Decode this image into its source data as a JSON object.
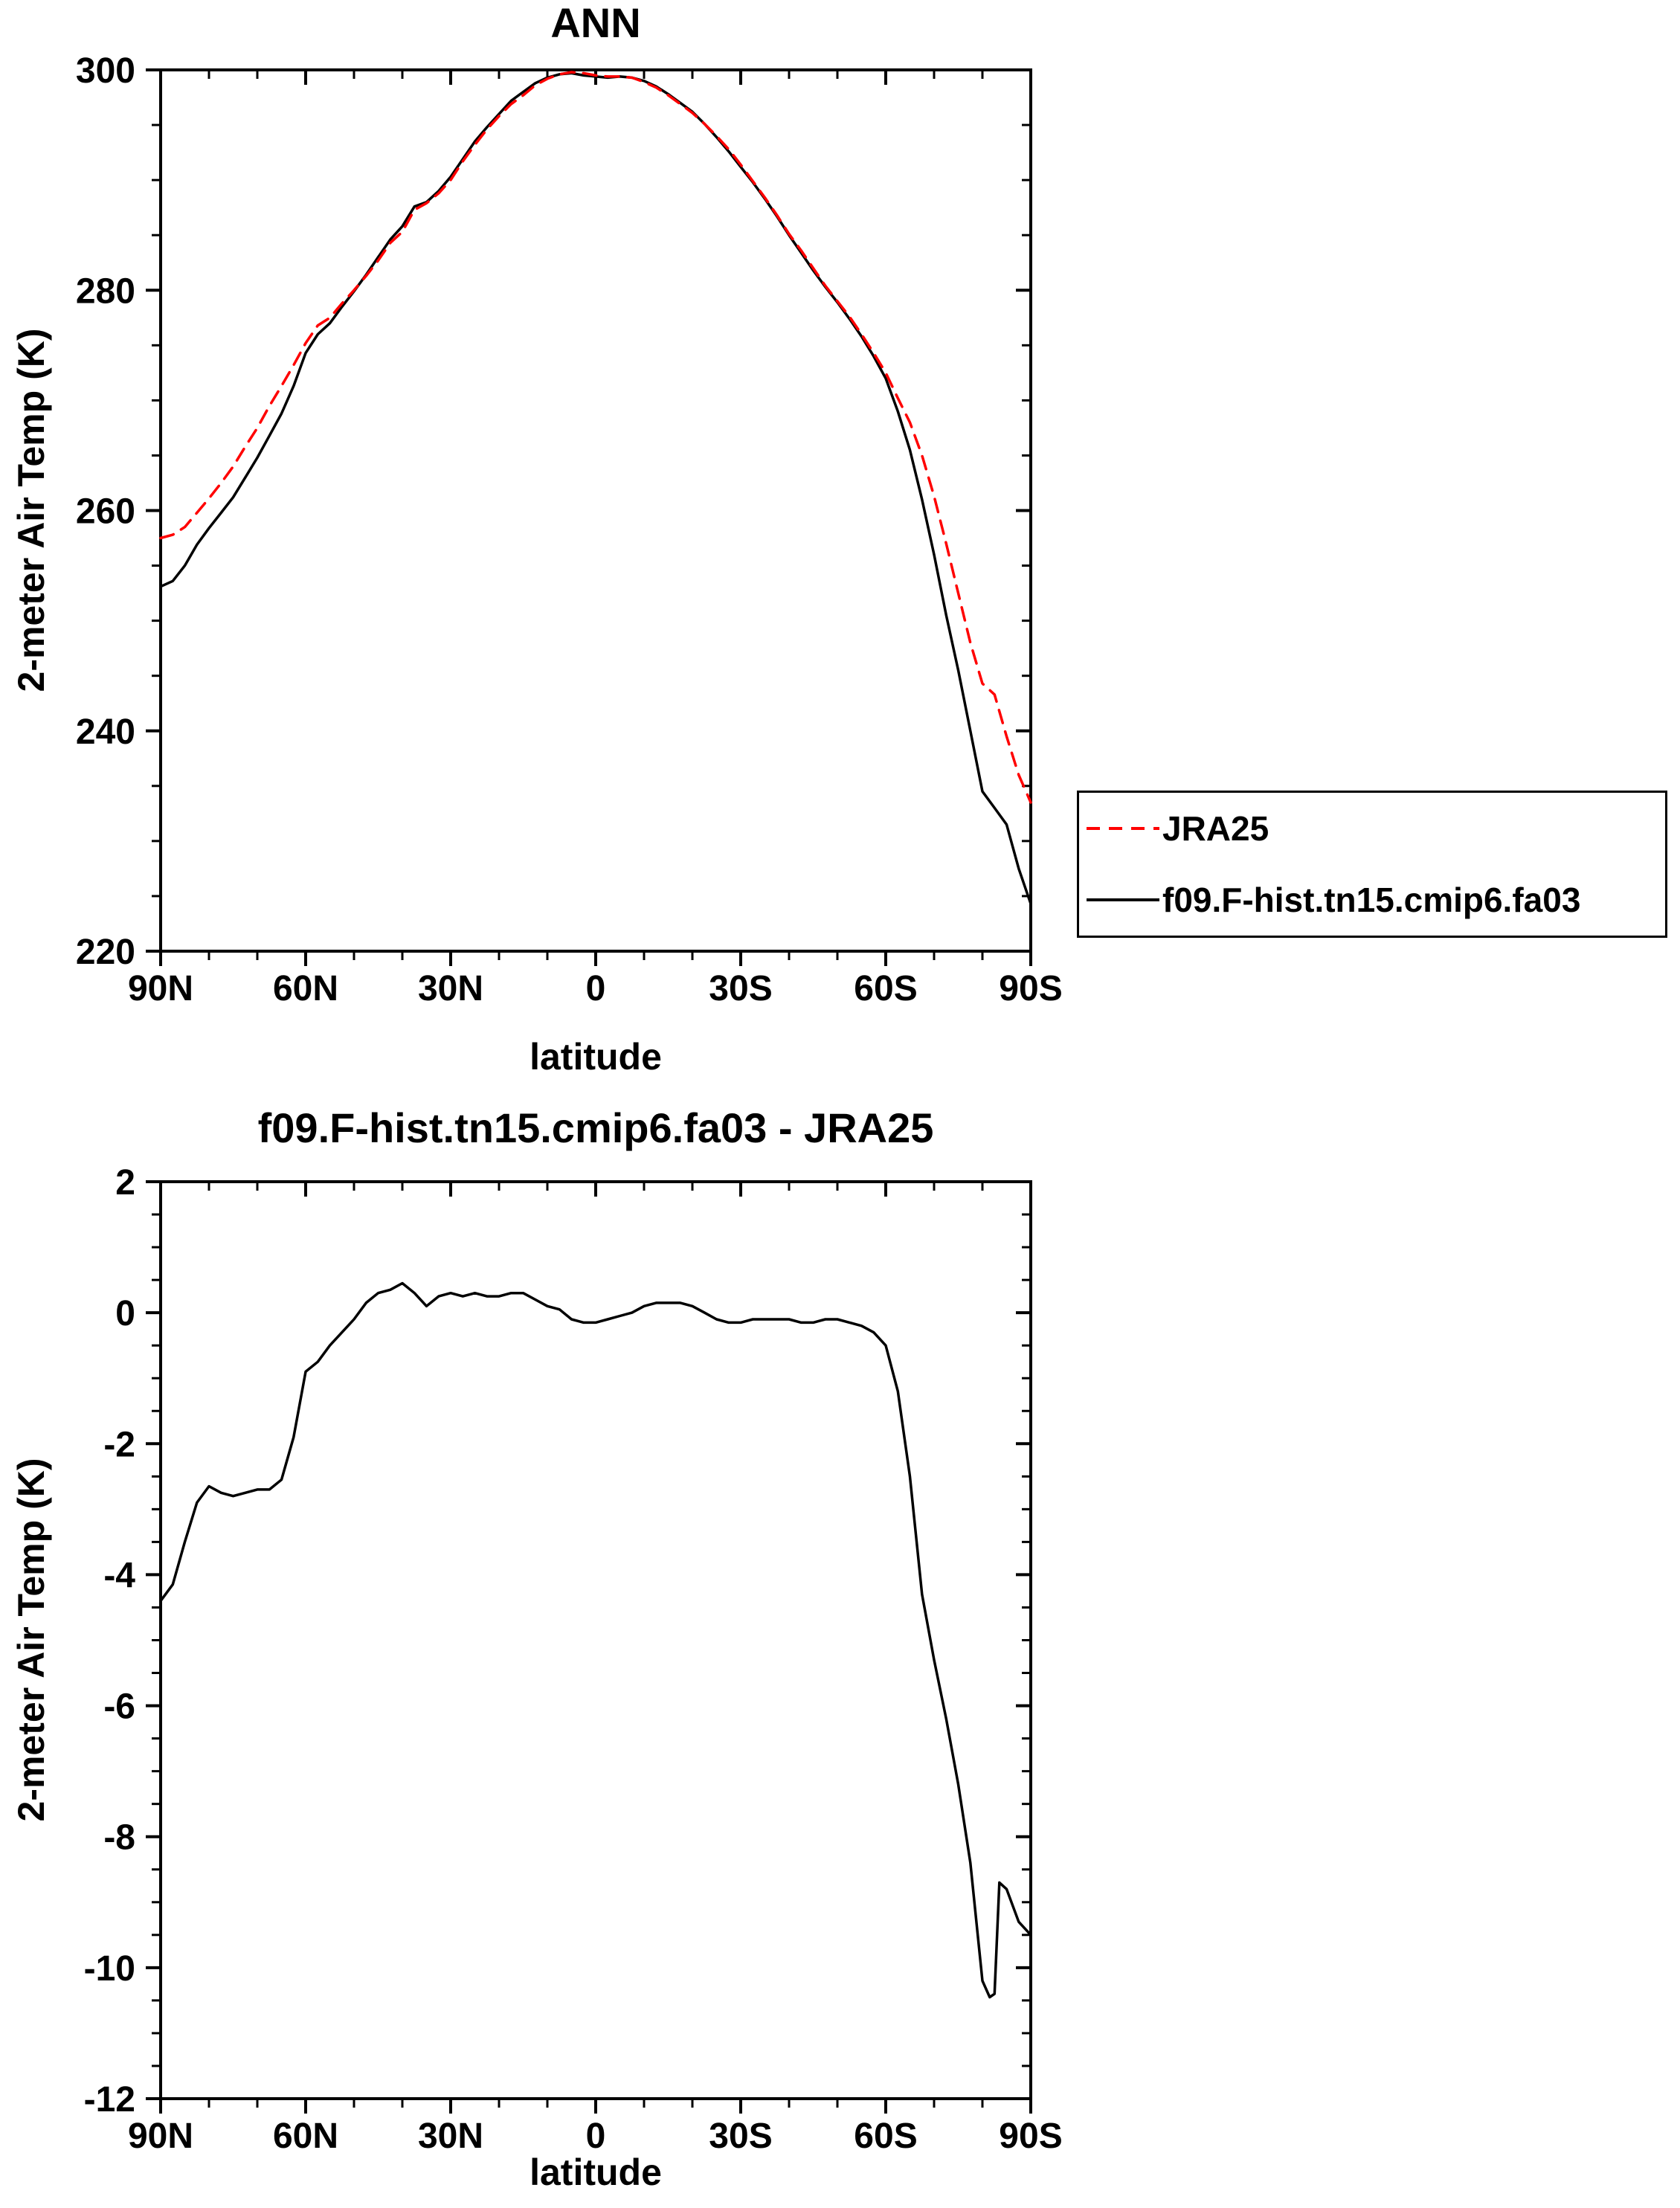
{
  "page": {
    "background": "#ffffff"
  },
  "colors": {
    "axis": "#000000",
    "jra25": "#ff0000",
    "model": "#000000"
  },
  "chart_data": [
    {
      "type": "line",
      "title": "ANN",
      "xlabel": "latitude",
      "ylabel": "2-meter Air Temp (K)",
      "xlim": [
        90,
        -90
      ],
      "ylim": [
        220,
        300
      ],
      "grid": false,
      "legend": {
        "position": "outside-right",
        "entries": [
          "JRA25",
          "f09.F-hist.tn15.cmip6.fa03"
        ]
      },
      "xticks": {
        "major": [
          90,
          60,
          30,
          0,
          -30,
          -60,
          -90
        ],
        "labels": [
          "90N",
          "60N",
          "30N",
          "0",
          "30S",
          "60S",
          "90S"
        ],
        "minor_step": 10
      },
      "yticks": {
        "major": [
          220,
          240,
          260,
          280,
          300
        ],
        "labels": [
          "220",
          "240",
          "260",
          "280",
          "300"
        ],
        "minor_step": 5
      },
      "x": [
        90,
        87.5,
        85,
        82.5,
        80,
        77.5,
        75,
        72.5,
        70,
        67.5,
        65,
        62.5,
        60,
        57.5,
        55,
        52.5,
        50,
        47.5,
        45,
        42.5,
        40,
        37.5,
        35,
        32.5,
        30,
        27.5,
        25,
        22.5,
        20,
        17.5,
        15,
        12.5,
        10,
        7.5,
        5,
        2.5,
        0,
        -2.5,
        -5,
        -7.5,
        -10,
        -12.5,
        -15,
        -17.5,
        -20,
        -22.5,
        -25,
        -27.5,
        -30,
        -32.5,
        -35,
        -37.5,
        -40,
        -42.5,
        -45,
        -47.5,
        -50,
        -52.5,
        -55,
        -57.5,
        -60,
        -62.5,
        -65,
        -67.5,
        -70,
        -72.5,
        -75,
        -77.5,
        -80,
        -82.5,
        -85,
        -87.5,
        -90
      ],
      "series": [
        {
          "name": "JRA25",
          "color": "#ff0000",
          "dash": "dashed",
          "values": [
            257.5,
            257.8,
            258.5,
            259.8,
            261.1,
            262.5,
            264.0,
            265.8,
            267.5,
            269.5,
            271.3,
            273.2,
            275.2,
            276.8,
            277.5,
            278.8,
            280.0,
            281.3,
            282.7,
            284.3,
            285.3,
            287.3,
            287.9,
            288.8,
            290.0,
            291.7,
            293.2,
            294.6,
            295.8,
            296.9,
            297.7,
            298.6,
            299.2,
            299.6,
            299.8,
            299.7,
            299.5,
            299.4,
            299.4,
            299.3,
            298.9,
            298.4,
            297.7,
            296.9,
            296.1,
            295.1,
            294.0,
            292.8,
            291.4,
            289.9,
            288.4,
            286.8,
            285.1,
            283.6,
            282.0,
            280.4,
            279.0,
            277.6,
            276.0,
            274.3,
            272.5,
            270.2,
            268.0,
            265.0,
            261.3,
            257.0,
            252.5,
            248.0,
            244.3,
            243.3,
            239.5,
            236.0,
            233.5
          ]
        },
        {
          "name": "f09.F-hist.tn15.cmip6.fa03",
          "color": "#000000",
          "dash": "solid",
          "values": [
            253.1,
            253.6,
            255.0,
            256.9,
            258.4,
            259.8,
            261.2,
            263.0,
            264.8,
            266.8,
            268.8,
            271.3,
            274.3,
            276.0,
            277.0,
            278.5,
            279.9,
            281.4,
            283.0,
            284.6,
            285.8,
            287.6,
            288.0,
            289.0,
            290.3,
            291.9,
            293.5,
            294.8,
            296.0,
            297.2,
            298.0,
            298.8,
            299.3,
            299.6,
            299.7,
            299.5,
            299.4,
            299.3,
            299.4,
            299.3,
            299.0,
            298.5,
            297.8,
            297.0,
            296.2,
            295.1,
            293.9,
            292.6,
            291.2,
            289.8,
            288.3,
            286.7,
            285.0,
            283.4,
            281.8,
            280.3,
            278.9,
            277.4,
            275.8,
            274.0,
            272.0,
            269.0,
            265.5,
            261.0,
            256.0,
            250.5,
            245.5,
            240.0,
            234.5,
            233.0,
            231.5,
            227.5,
            224.3
          ]
        }
      ]
    },
    {
      "type": "line",
      "title": "f09.F-hist.tn15.cmip6.fa03 - JRA25",
      "xlabel": "latitude",
      "ylabel": "2-meter Air Temp (K)",
      "xlim": [
        90,
        -90
      ],
      "ylim": [
        -12,
        2
      ],
      "grid": false,
      "xticks": {
        "major": [
          90,
          60,
          30,
          0,
          -30,
          -60,
          -90
        ],
        "labels": [
          "90N",
          "60N",
          "30N",
          "0",
          "30S",
          "60S",
          "90S"
        ],
        "minor_step": 10
      },
      "yticks": {
        "major": [
          2,
          0,
          -2,
          -4,
          -6,
          -8,
          -10,
          -12
        ],
        "labels": [
          "2",
          "0",
          "-2",
          "-4",
          "-6",
          "-8",
          "-10",
          "-12"
        ],
        "minor_step": 0.5
      },
      "x": [
        90,
        87.5,
        85,
        82.5,
        80,
        77.5,
        75,
        72.5,
        70,
        67.5,
        65,
        62.5,
        60,
        57.5,
        55,
        52.5,
        50,
        47.5,
        45,
        42.5,
        40,
        37.5,
        35,
        32.5,
        30,
        27.5,
        25,
        22.5,
        20,
        17.5,
        15,
        12.5,
        10,
        7.5,
        5,
        2.5,
        0,
        -2.5,
        -5,
        -7.5,
        -10,
        -12.5,
        -15,
        -17.5,
        -20,
        -22.5,
        -25,
        -27.5,
        -30,
        -32.5,
        -35,
        -37.5,
        -40,
        -42.5,
        -45,
        -47.5,
        -50,
        -52.5,
        -55,
        -57.5,
        -60,
        -62.5,
        -65,
        -67.5,
        -70,
        -72.5,
        -75,
        -77.5,
        -80,
        -81.5,
        -82.5,
        -83.5,
        -85,
        -87.5,
        -90
      ],
      "series": [
        {
          "name": "model minus JRA25 difference",
          "color": "#000000",
          "dash": "solid",
          "values": [
            -4.4,
            -4.15,
            -3.5,
            -2.9,
            -2.65,
            -2.75,
            -2.8,
            -2.75,
            -2.7,
            -2.7,
            -2.55,
            -1.9,
            -0.9,
            -0.75,
            -0.5,
            -0.3,
            -0.1,
            0.15,
            0.3,
            0.35,
            0.45,
            0.3,
            0.1,
            0.25,
            0.3,
            0.25,
            0.3,
            0.25,
            0.25,
            0.3,
            0.3,
            0.2,
            0.1,
            0.05,
            -0.1,
            -0.15,
            -0.15,
            -0.1,
            -0.05,
            0.0,
            0.1,
            0.15,
            0.15,
            0.15,
            0.1,
            0.0,
            -0.1,
            -0.15,
            -0.15,
            -0.1,
            -0.1,
            -0.1,
            -0.1,
            -0.15,
            -0.15,
            -0.1,
            -0.1,
            -0.15,
            -0.2,
            -0.3,
            -0.5,
            -1.2,
            -2.5,
            -4.3,
            -5.3,
            -6.2,
            -7.2,
            -8.4,
            -10.2,
            -10.45,
            -10.4,
            -8.7,
            -8.8,
            -9.3,
            -9.5
          ]
        }
      ]
    }
  ]
}
